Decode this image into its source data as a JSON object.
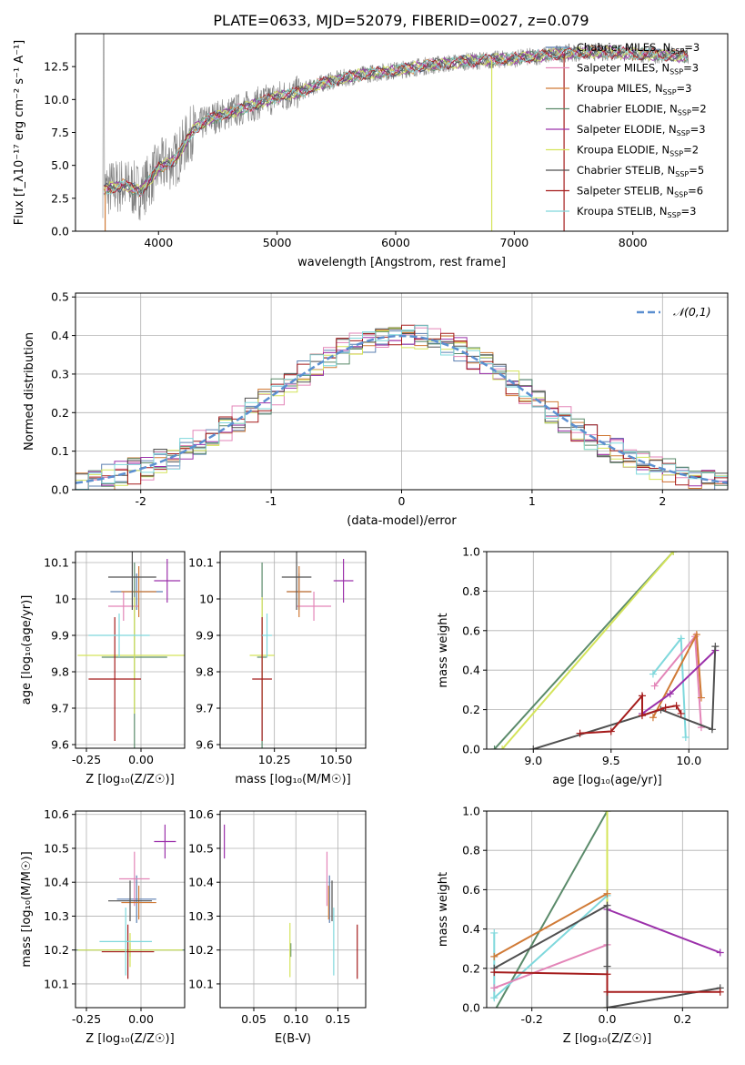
{
  "figure": {
    "title": "PLATE=0633, MJD=52079, FIBERID=0027, z=0.079"
  },
  "series_colors": {
    "Chabrier MILES": "#5b7fb0",
    "Salpeter MILES": "#e385b8",
    "Kroupa MILES": "#d07a36",
    "Chabrier ELODIE": "#5a8a6a",
    "Salpeter ELODIE": "#9b30aa",
    "Kroupa ELODIE": "#d4e45a",
    "Chabrier STELIB": "#505050",
    "Salpeter STELIB": "#a51c1c",
    "Kroupa STELIB": "#7fd8dc"
  },
  "chart_data": [
    {
      "id": "spectrum",
      "type": "line",
      "xlabel": "wavelength [Angstrom, rest frame]",
      "ylabel": "Flux [f_λ10⁻¹⁷ erg cm⁻² s⁻¹ A⁻¹]",
      "xlim": [
        3300,
        8800
      ],
      "ylim": [
        0,
        15
      ],
      "xticks": [
        4000,
        5000,
        6000,
        7000,
        8000
      ],
      "yticks": [
        0.0,
        2.5,
        5.0,
        7.5,
        10.0,
        12.5
      ],
      "grid": false,
      "legend_position": "top-right",
      "data_color": "#808080",
      "data_anchor_points": {
        "x": [
          3550,
          3700,
          3850,
          4000,
          4150,
          4300,
          4450,
          4600,
          4800,
          5000,
          5200,
          5400,
          5600,
          5800,
          6000,
          6200,
          6400,
          6600,
          6800,
          7000,
          7200,
          7400,
          7600,
          7800,
          8000,
          8200,
          8400
        ],
        "y": [
          3.2,
          3.5,
          3.0,
          4.8,
          5.5,
          7.8,
          8.6,
          9.0,
          9.6,
          10.2,
          10.6,
          11.3,
          11.7,
          12.0,
          12.2,
          12.5,
          12.7,
          12.9,
          13.0,
          13.1,
          13.3,
          13.5,
          13.6,
          13.6,
          13.5,
          13.4,
          13.3
        ]
      },
      "series": [
        {
          "name": "Chabrier MILES",
          "nssp": "3"
        },
        {
          "name": "Salpeter MILES",
          "nssp": "3"
        },
        {
          "name": "Kroupa MILES",
          "nssp": "3"
        },
        {
          "name": "Chabrier ELODIE",
          "nssp": "2"
        },
        {
          "name": "Salpeter ELODIE",
          "nssp": "3"
        },
        {
          "name": "Kroupa ELODIE",
          "nssp": "2"
        },
        {
          "name": "Chabrier STELIB",
          "nssp": "5"
        },
        {
          "name": "Salpeter STELIB",
          "nssp": "6"
        },
        {
          "name": "Kroupa STELIB",
          "nssp": "3"
        }
      ]
    },
    {
      "id": "residuals",
      "type": "line",
      "xlabel": "(data-model)/error",
      "ylabel": "Normed distribution",
      "xlim": [
        -2.5,
        2.5
      ],
      "ylim": [
        0,
        0.51
      ],
      "xticks": [
        -2,
        -1,
        0,
        1,
        2
      ],
      "yticks": [
        0.0,
        0.1,
        0.2,
        0.3,
        0.4,
        0.5
      ],
      "grid": true,
      "legend_position": "top-right",
      "reference_curve": {
        "label": "𝒩(0,1)",
        "color": "#5b8fd0",
        "style": "dashed"
      },
      "bin_width": 0.1,
      "bin_start": -2.5
    },
    {
      "id": "z-age",
      "type": "scatter",
      "xlabel": "Z [log₁₀(Z/Z☉)]",
      "ylabel": "age  [log₁₀(age/yr)]",
      "xlim": [
        -0.3,
        0.2
      ],
      "ylim": [
        9.59,
        10.13
      ],
      "xticks": [
        -0.25,
        0.0
      ],
      "yticks": [
        9.6,
        9.7,
        9.8,
        9.9,
        10.0,
        10.1
      ],
      "grid": true,
      "points": [
        {
          "series": "Chabrier MILES",
          "x": -0.02,
          "y": 10.02,
          "xerr": 0.12,
          "yerr": 0.05
        },
        {
          "series": "Salpeter MILES",
          "x": -0.08,
          "y": 9.98,
          "xerr": 0.07,
          "yerr": 0.04
        },
        {
          "series": "Kroupa MILES",
          "x": -0.01,
          "y": 10.02,
          "xerr": 0.08,
          "yerr": 0.07
        },
        {
          "series": "Chabrier ELODIE",
          "x": -0.03,
          "y": 9.84,
          "xerr": 0.15,
          "yerr": 0.26
        },
        {
          "series": "Salpeter ELODIE",
          "x": 0.12,
          "y": 10.05,
          "xerr": 0.06,
          "yerr": 0.06
        },
        {
          "series": "Kroupa ELODIE",
          "x": -0.03,
          "y": 9.845,
          "xerr": 0.26,
          "yerr": 0.16
        },
        {
          "series": "Chabrier STELIB",
          "x": -0.04,
          "y": 10.06,
          "xerr": 0.11,
          "yerr": 0.09
        },
        {
          "series": "Salpeter STELIB",
          "x": -0.12,
          "y": 9.78,
          "xerr": 0.12,
          "yerr": 0.17
        },
        {
          "series": "Kroupa STELIB",
          "x": -0.1,
          "y": 9.9,
          "xerr": 0.14,
          "yerr": 0.06
        }
      ]
    },
    {
      "id": "mass-age",
      "type": "scatter",
      "xlabel": "mass [log₁₀(M/M☉)]",
      "ylabel": "",
      "xlim": [
        10.03,
        10.62
      ],
      "ylim": [
        9.59,
        10.13
      ],
      "xticks": [
        10.25,
        10.5
      ],
      "yticks": [
        9.6,
        9.7,
        9.8,
        9.9,
        10.0,
        10.1
      ],
      "grid": true,
      "points": [
        {
          "series": "Chabrier MILES",
          "x": 10.35,
          "y": 10.02,
          "xerr": 0.05,
          "yerr": 0.05
        },
        {
          "series": "Salpeter MILES",
          "x": 10.41,
          "y": 9.98,
          "xerr": 0.07,
          "yerr": 0.04
        },
        {
          "series": "Kroupa MILES",
          "x": 10.35,
          "y": 10.02,
          "xerr": 0.05,
          "yerr": 0.07
        },
        {
          "series": "Chabrier ELODIE",
          "x": 10.2,
          "y": 9.84,
          "xerr": 0.02,
          "yerr": 0.26
        },
        {
          "series": "Salpeter ELODIE",
          "x": 10.53,
          "y": 10.05,
          "xerr": 0.04,
          "yerr": 0.06
        },
        {
          "series": "Kroupa ELODIE",
          "x": 10.2,
          "y": 9.845,
          "xerr": 0.05,
          "yerr": 0.16
        },
        {
          "series": "Chabrier STELIB",
          "x": 10.34,
          "y": 10.06,
          "xerr": 0.06,
          "yerr": 0.09
        },
        {
          "series": "Salpeter STELIB",
          "x": 10.2,
          "y": 9.78,
          "xerr": 0.04,
          "yerr": 0.17
        },
        {
          "series": "Kroupa STELIB",
          "x": 10.22,
          "y": 9.9,
          "xerr": 0.02,
          "yerr": 0.06
        }
      ]
    },
    {
      "id": "age-weight",
      "type": "line",
      "xlabel": "age  [log₁₀(age/yr)]",
      "ylabel": "mass weight",
      "xlim": [
        8.7,
        10.25
      ],
      "ylim": [
        0,
        1
      ],
      "xticks": [
        9.0,
        9.5,
        10.0
      ],
      "yticks": [
        0.0,
        0.2,
        0.4,
        0.6,
        0.8,
        1.0
      ],
      "grid": true,
      "series": [
        {
          "series": "Chabrier ELODIE",
          "x": [
            8.75,
            9.9
          ],
          "y": [
            0.0,
            1.0
          ]
        },
        {
          "series": "Kroupa ELODIE",
          "x": [
            8.8,
            9.9
          ],
          "y": [
            0.0,
            1.0
          ]
        },
        {
          "series": "Kroupa STELIB",
          "x": [
            9.77,
            9.95,
            9.98
          ],
          "y": [
            0.38,
            0.56,
            0.06
          ]
        },
        {
          "series": "Salpeter MILES",
          "x": [
            9.78,
            10.04,
            10.08
          ],
          "y": [
            0.32,
            0.57,
            0.11
          ]
        },
        {
          "series": "Kroupa MILES",
          "x": [
            9.77,
            10.05,
            10.08
          ],
          "y": [
            0.16,
            0.58,
            0.26
          ]
        },
        {
          "series": "Salpeter ELODIE",
          "x": [
            9.7,
            9.88,
            10.17
          ],
          "y": [
            0.18,
            0.28,
            0.5
          ]
        },
        {
          "series": "Chabrier STELIB",
          "x": [
            9.0,
            9.82,
            10.15,
            10.17
          ],
          "y": [
            0.0,
            0.2,
            0.1,
            0.52
          ]
        },
        {
          "series": "Salpeter STELIB",
          "x": [
            9.3,
            9.5,
            9.7,
            9.7,
            9.85,
            9.92,
            9.95
          ],
          "y": [
            0.08,
            0.09,
            0.27,
            0.17,
            0.21,
            0.22,
            0.18
          ]
        }
      ]
    },
    {
      "id": "z-mass",
      "type": "scatter",
      "xlabel": "Z [log₁₀(Z/Z☉)]",
      "ylabel": "mass [log₁₀(M/M☉)]",
      "xlim": [
        -0.3,
        0.2
      ],
      "ylim": [
        10.03,
        10.61
      ],
      "xticks": [
        -0.25,
        0.0
      ],
      "yticks": [
        10.1,
        10.2,
        10.3,
        10.4,
        10.5,
        10.6
      ],
      "grid": true,
      "points": [
        {
          "series": "Chabrier MILES",
          "x": -0.02,
          "y": 10.35,
          "xerr": 0.09,
          "yerr": 0.07
        },
        {
          "series": "Salpeter MILES",
          "x": -0.03,
          "y": 10.41,
          "xerr": 0.07,
          "yerr": 0.08
        },
        {
          "series": "Kroupa MILES",
          "x": -0.01,
          "y": 10.34,
          "xerr": 0.08,
          "yerr": 0.05
        },
        {
          "series": "Chabrier ELODIE",
          "x": -0.05,
          "y": 10.2,
          "xerr": 0.25,
          "yerr": 0.02
        },
        {
          "series": "Salpeter ELODIE",
          "x": 0.11,
          "y": 10.52,
          "xerr": 0.05,
          "yerr": 0.05
        },
        {
          "series": "Kroupa ELODIE",
          "x": -0.05,
          "y": 10.2,
          "xerr": 0.24,
          "yerr": 0.05
        },
        {
          "series": "Chabrier STELIB",
          "x": -0.05,
          "y": 10.345,
          "xerr": 0.1,
          "yerr": 0.06
        },
        {
          "series": "Salpeter STELIB",
          "x": -0.06,
          "y": 10.195,
          "xerr": 0.12,
          "yerr": 0.08
        },
        {
          "series": "Kroupa STELIB",
          "x": -0.07,
          "y": 10.225,
          "xerr": 0.12,
          "yerr": 0.1
        }
      ]
    },
    {
      "id": "ebv-mass",
      "type": "scatter",
      "xlabel": "E(B-V)",
      "ylabel": "",
      "xlim": [
        0.01,
        0.183
      ],
      "ylim": [
        10.03,
        10.61
      ],
      "xticks": [
        0.05,
        0.1,
        0.15
      ],
      "yticks": [
        10.1,
        10.2,
        10.3,
        10.4,
        10.5,
        10.6
      ],
      "grid": true,
      "points": [
        {
          "series": "Chabrier MILES",
          "x": 0.14,
          "y": 10.35,
          "xerr": 0,
          "yerr": 0.07
        },
        {
          "series": "Salpeter MILES",
          "x": 0.137,
          "y": 10.41,
          "xerr": 0,
          "yerr": 0.08
        },
        {
          "series": "Kroupa MILES",
          "x": 0.139,
          "y": 10.34,
          "xerr": 0,
          "yerr": 0.05
        },
        {
          "series": "Chabrier ELODIE",
          "x": 0.094,
          "y": 10.2,
          "xerr": 0,
          "yerr": 0.02
        },
        {
          "series": "Salpeter ELODIE",
          "x": 0.015,
          "y": 10.52,
          "xerr": 0,
          "yerr": 0.05
        },
        {
          "series": "Kroupa ELODIE",
          "x": 0.093,
          "y": 10.2,
          "xerr": 0,
          "yerr": 0.08
        },
        {
          "series": "Chabrier STELIB",
          "x": 0.143,
          "y": 10.345,
          "xerr": 0,
          "yerr": 0.06
        },
        {
          "series": "Salpeter STELIB",
          "x": 0.173,
          "y": 10.195,
          "xerr": 0,
          "yerr": 0.08
        },
        {
          "series": "Kroupa STELIB",
          "x": 0.145,
          "y": 10.225,
          "xerr": 0,
          "yerr": 0.1
        }
      ]
    },
    {
      "id": "z-weight",
      "type": "line",
      "xlabel": "Z [log₁₀(Z/Z☉)]",
      "ylabel": "mass weight",
      "xlim": [
        -0.32,
        0.32
      ],
      "ylim": [
        0,
        1
      ],
      "xticks": [
        -0.2,
        0.0,
        0.2
      ],
      "yticks": [
        0.0,
        0.2,
        0.4,
        0.6,
        0.8,
        1.0
      ],
      "grid": true,
      "series": [
        {
          "series": "Chabrier ELODIE",
          "x": [
            -0.3,
            0.0
          ],
          "y": [
            -0.02,
            1.0
          ]
        },
        {
          "series": "Kroupa ELODIE",
          "x": [
            0.0,
            0.0
          ],
          "y": [
            0.0,
            1.0
          ]
        },
        {
          "series": "Kroupa STELIB",
          "x": [
            -0.3,
            -0.3,
            0.0
          ],
          "y": [
            0.38,
            0.05,
            0.57
          ]
        },
        {
          "series": "Salpeter MILES",
          "x": [
            -0.3,
            0.0
          ],
          "y": [
            0.1,
            0.32
          ]
        },
        {
          "series": "Kroupa MILES",
          "x": [
            -0.3,
            0.0
          ],
          "y": [
            0.26,
            0.58
          ]
        },
        {
          "series": "Salpeter ELODIE",
          "x": [
            0.0,
            0.3
          ],
          "y": [
            0.5,
            0.28
          ]
        },
        {
          "series": "Chabrier STELIB",
          "x": [
            -0.3,
            0.0,
            0.0,
            0.0,
            0.3
          ],
          "y": [
            0.2,
            0.52,
            0.21,
            0.0,
            0.1
          ]
        },
        {
          "series": "Salpeter STELIB",
          "x": [
            -0.3,
            0.0,
            0.0,
            0.3
          ],
          "y": [
            0.18,
            0.17,
            0.08,
            0.08
          ]
        }
      ]
    }
  ]
}
